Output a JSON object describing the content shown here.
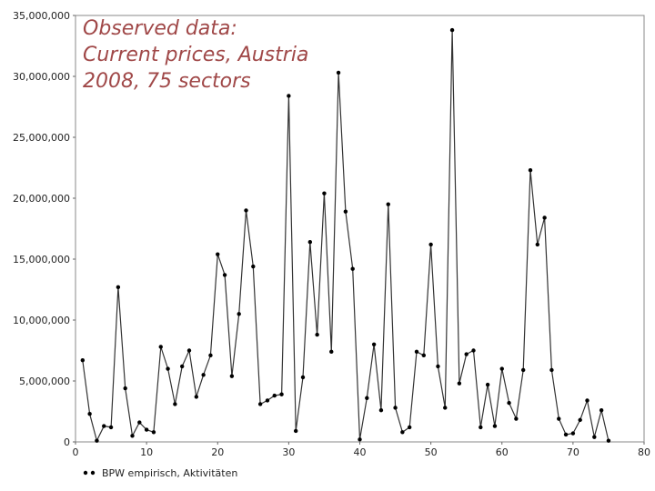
{
  "chart_data": {
    "type": "line",
    "annotation": [
      "Observed data:",
      "Current prices, Austria",
      "2008, 75 sectors"
    ],
    "annotation_color": "#a04848",
    "legend": {
      "label": "BPW empirisch, Aktivitäten",
      "placement": "bottom-left"
    },
    "xlim": [
      0,
      80
    ],
    "ylim": [
      0,
      35000000
    ],
    "x_ticks": [
      0,
      10,
      20,
      30,
      40,
      50,
      60,
      70,
      80
    ],
    "x_tick_labels": [
      "0",
      "10",
      "20",
      "30",
      "40",
      "50",
      "60",
      "70",
      "80"
    ],
    "y_ticks": [
      0,
      5000000,
      10000000,
      15000000,
      20000000,
      25000000,
      30000000,
      35000000
    ],
    "y_tick_labels": [
      "0",
      "5,000,000",
      "10,000,000",
      "15,000,000",
      "20,000,000",
      "25,000,000",
      "30,000,000",
      "35,000,000"
    ],
    "grid": true,
    "series": [
      {
        "name": "BPW empirisch, Aktivitäten",
        "color": "#333333",
        "x": [
          1,
          2,
          3,
          4,
          5,
          6,
          7,
          8,
          9,
          10,
          11,
          12,
          13,
          14,
          15,
          16,
          17,
          18,
          19,
          20,
          21,
          22,
          23,
          24,
          25,
          26,
          27,
          28,
          29,
          30,
          31,
          32,
          33,
          34,
          35,
          36,
          37,
          38,
          39,
          40,
          41,
          42,
          43,
          44,
          45,
          46,
          47,
          48,
          49,
          50,
          51,
          52,
          53,
          54,
          55,
          56,
          57,
          58,
          59,
          60,
          61,
          62,
          63,
          64,
          65,
          66,
          67,
          68,
          69,
          70,
          71,
          72,
          73,
          74,
          75
        ],
        "y": [
          6700000,
          2300000,
          100000,
          1300000,
          1200000,
          12700000,
          4400000,
          500000,
          1600000,
          1000000,
          800000,
          7800000,
          6000000,
          3100000,
          6200000,
          7500000,
          3700000,
          5500000,
          7100000,
          15400000,
          13700000,
          5400000,
          10500000,
          19000000,
          14400000,
          3100000,
          3400000,
          3800000,
          3900000,
          28400000,
          900000,
          5300000,
          16400000,
          8800000,
          20400000,
          7400000,
          30300000,
          18900000,
          14200000,
          200000,
          3600000,
          8000000,
          2600000,
          19500000,
          2800000,
          800000,
          1200000,
          7400000,
          7100000,
          16200000,
          6200000,
          2800000,
          33800000,
          4800000,
          7200000,
          7500000,
          1200000,
          4700000,
          1300000,
          6000000,
          3200000,
          1900000,
          5900000,
          22300000,
          16200000,
          18400000,
          5900000,
          1900000,
          600000,
          700000,
          1800000,
          3400000,
          400000,
          2600000,
          100000
        ]
      }
    ]
  }
}
